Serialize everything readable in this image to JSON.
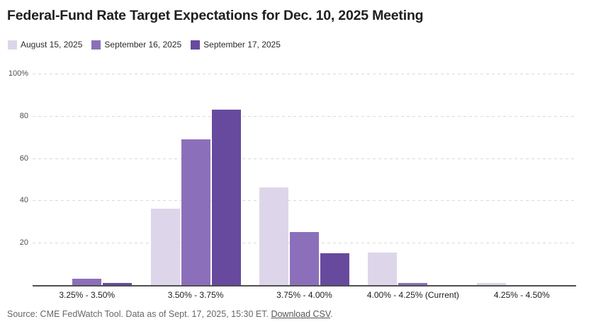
{
  "title": "Federal-Fund Rate Target Expectations for Dec. 10, 2025 Meeting",
  "chart_data": {
    "type": "bar",
    "categories": [
      "3.25% - 3.50%",
      "3.50% - 3.75%",
      "3.75% - 4.00%",
      "4.00% - 4.25% (Current)",
      "4.25% - 4.50%"
    ],
    "series": [
      {
        "name": "August 15, 2025",
        "color": "#ddd6ea",
        "values": [
          0,
          36,
          46,
          15.5,
          1
        ]
      },
      {
        "name": "September 16, 2025",
        "color": "#8c6fbb",
        "values": [
          3,
          69,
          25,
          1,
          0
        ]
      },
      {
        "name": "September 17, 2025",
        "color": "#674a9d",
        "values": [
          1,
          83,
          15,
          0,
          0
        ]
      }
    ],
    "ylabel": "",
    "xlabel": "",
    "ylim": [
      0,
      100
    ],
    "yticks": [
      100,
      80,
      60,
      40,
      20
    ],
    "ytick_labels": [
      "100%",
      "80",
      "60",
      "40",
      "20"
    ],
    "grid": "horizontal-dashed",
    "legend_position": "top-left",
    "axis_line_color": "#4f4f4f",
    "gridline_color": "#d9d9d9"
  },
  "footer": {
    "source_text": "Source: CME FedWatch Tool. Data as of Sept. 17, 2025, 15:30 ET. ",
    "download_link": "Download CSV",
    "suffix": "."
  }
}
